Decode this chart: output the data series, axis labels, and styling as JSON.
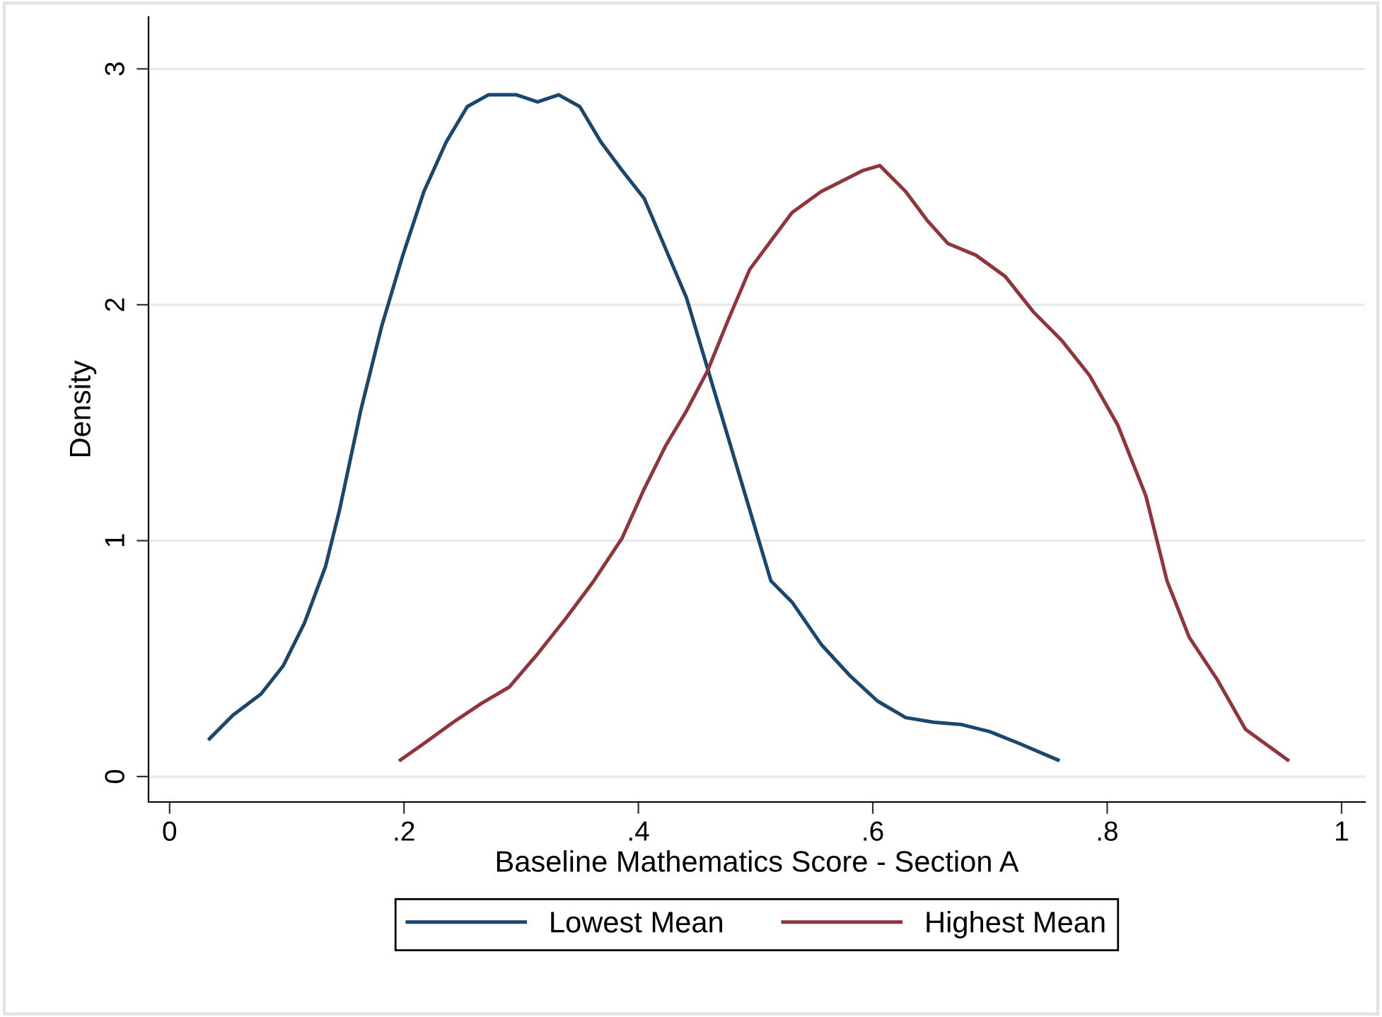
{
  "chart_data": {
    "type": "line",
    "xlabel": "Baseline Mathematics Score - Section A",
    "ylabel": "Density",
    "xlim": [
      -0.018,
      1.02
    ],
    "ylim": [
      -0.108,
      3.22
    ],
    "xticks": [
      0,
      {
        "value": 0.2,
        "label": ".2"
      },
      {
        "value": 0.4,
        "label": ".4"
      },
      {
        "value": 0.6,
        "label": ".6"
      },
      {
        "value": 0.8,
        "label": ".8"
      },
      1
    ],
    "yticks": [
      0,
      1,
      2,
      3
    ],
    "grid": "y",
    "legend": "bottom",
    "marker": "none",
    "line_style": "solid",
    "series": [
      {
        "name": "Lowest Mean",
        "color": "#1a476f",
        "x": [
          0.034,
          0.054,
          0.078,
          0.097,
          0.115,
          0.133,
          0.145,
          0.163,
          0.181,
          0.199,
          0.217,
          0.236,
          0.254,
          0.272,
          0.296,
          0.314,
          0.332,
          0.35,
          0.368,
          0.386,
          0.405,
          0.423,
          0.441,
          0.459,
          0.477,
          0.495,
          0.513,
          0.531,
          0.556,
          0.58,
          0.604,
          0.628,
          0.652,
          0.676,
          0.7,
          0.725,
          0.758
        ],
        "values": [
          0.16,
          0.26,
          0.35,
          0.47,
          0.65,
          0.89,
          1.13,
          1.55,
          1.91,
          2.21,
          2.48,
          2.69,
          2.84,
          2.89,
          2.89,
          2.86,
          2.89,
          2.84,
          2.69,
          2.57,
          2.45,
          2.24,
          2.03,
          1.73,
          1.43,
          1.13,
          0.83,
          0.74,
          0.56,
          0.43,
          0.32,
          0.25,
          0.23,
          0.22,
          0.19,
          0.14,
          0.07
        ]
      },
      {
        "name": "Highest Mean",
        "color": "#90353b",
        "x": [
          0.197,
          0.217,
          0.242,
          0.266,
          0.29,
          0.314,
          0.338,
          0.362,
          0.386,
          0.405,
          0.423,
          0.441,
          0.459,
          0.477,
          0.495,
          0.513,
          0.531,
          0.556,
          0.58,
          0.592,
          0.606,
          0.628,
          0.646,
          0.664,
          0.688,
          0.713,
          0.737,
          0.761,
          0.785,
          0.809,
          0.833,
          0.851,
          0.87,
          0.894,
          0.918,
          0.954
        ],
        "values": [
          0.07,
          0.14,
          0.23,
          0.31,
          0.38,
          0.52,
          0.67,
          0.83,
          1.01,
          1.22,
          1.4,
          1.55,
          1.72,
          1.94,
          2.15,
          2.27,
          2.39,
          2.48,
          2.54,
          2.57,
          2.59,
          2.48,
          2.36,
          2.26,
          2.21,
          2.12,
          1.97,
          1.85,
          1.7,
          1.49,
          1.19,
          0.83,
          0.59,
          0.41,
          0.2,
          0.07
        ]
      }
    ]
  }
}
